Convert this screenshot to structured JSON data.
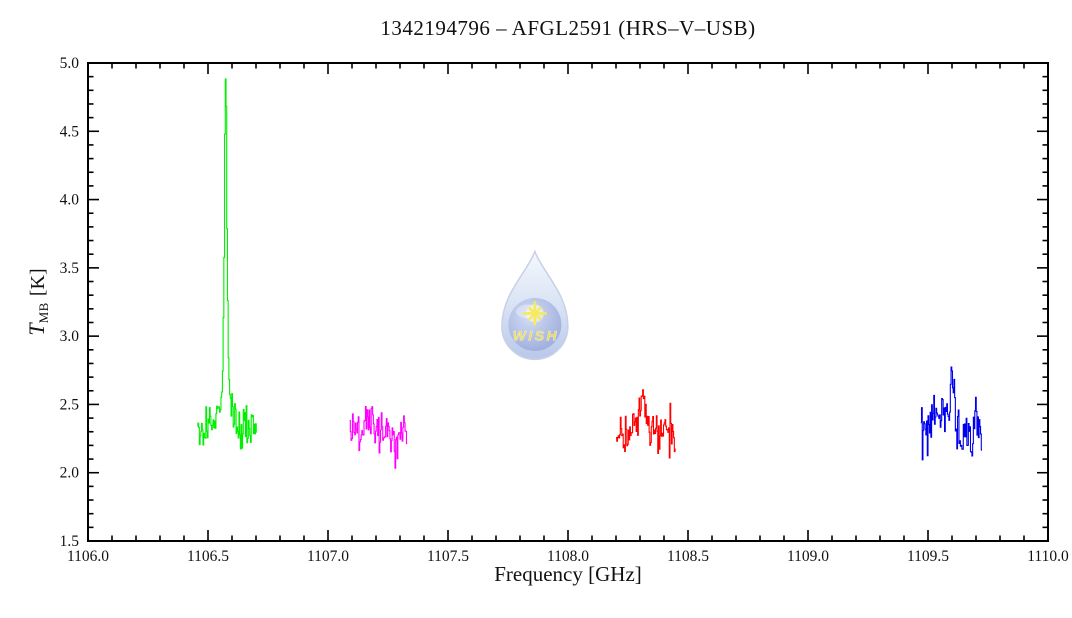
{
  "chart_data": {
    "type": "line",
    "title": "1342194796 – AFGL2591 (HRS–V–USB)",
    "xlabel": "Frequency [GHz]",
    "ylabel": "T_MB [K]",
    "ylabel_parts": {
      "symbol": "T",
      "subscript": "MB",
      "unit": "[K]"
    },
    "xlim": [
      1106.0,
      1110.0
    ],
    "ylim": [
      1.5,
      5.0
    ],
    "x_minor_step": 0.1,
    "y_minor_step": 0.1,
    "grid": false,
    "legend": "none",
    "axis_color": "#000000",
    "x_major_ticks": [
      {
        "value": 1106.0,
        "label": "1106.0"
      },
      {
        "value": 1106.5,
        "label": "1106.5"
      },
      {
        "value": 1107.0,
        "label": "1107.0"
      },
      {
        "value": 1107.5,
        "label": "1107.5"
      },
      {
        "value": 1108.0,
        "label": "1108.0"
      },
      {
        "value": 1108.5,
        "label": "1108.5"
      },
      {
        "value": 1109.0,
        "label": "1109.0"
      },
      {
        "value": 1109.5,
        "label": "1109.5"
      },
      {
        "value": 1110.0,
        "label": "1110.0"
      }
    ],
    "y_major_ticks": [
      {
        "value": 1.5,
        "label": "1.5"
      },
      {
        "value": 2.0,
        "label": "2.0"
      },
      {
        "value": 2.5,
        "label": "2.5"
      },
      {
        "value": 3.0,
        "label": "3.0"
      },
      {
        "value": 3.5,
        "label": "3.5"
      },
      {
        "value": 4.0,
        "label": "4.0"
      },
      {
        "value": 4.5,
        "label": "4.5"
      },
      {
        "value": 5.0,
        "label": "5.0"
      }
    ],
    "series": [
      {
        "name": "green-subband",
        "color": "#00ee00",
        "x_start": 1106.455,
        "x_end": 1106.705,
        "channel_width": 0.003,
        "baseline": 2.32,
        "noise_sigma": 0.075,
        "seed": 17,
        "peaks": [
          {
            "center": 1106.574,
            "height": 2.17,
            "fwhm": 0.012
          },
          {
            "center": 1106.574,
            "height": 0.38,
            "fwhm": 0.05
          }
        ],
        "peak_max_T": 4.87
      },
      {
        "name": "magenta-subband",
        "color": "#ff00ff",
        "x_start": 1107.09,
        "x_end": 1107.33,
        "channel_width": 0.003,
        "baseline": 2.3,
        "noise_sigma": 0.08,
        "seed": 29,
        "peaks": [
          {
            "center": 1107.17,
            "height": 0.1,
            "fwhm": 0.03
          }
        ],
        "peak_max_T": 2.55
      },
      {
        "name": "red-subband",
        "color": "#ff0000",
        "x_start": 1108.2,
        "x_end": 1108.45,
        "channel_width": 0.003,
        "baseline": 2.3,
        "noise_sigma": 0.075,
        "seed": 41,
        "peaks": [
          {
            "center": 1108.31,
            "height": 0.28,
            "fwhm": 0.03
          }
        ],
        "peak_max_T": 2.62
      },
      {
        "name": "blue-subband",
        "color": "#0000ee",
        "x_start": 1109.47,
        "x_end": 1109.725,
        "channel_width": 0.003,
        "baseline": 2.28,
        "noise_sigma": 0.085,
        "seed": 53,
        "peaks": [
          {
            "center": 1109.6,
            "height": 0.45,
            "fwhm": 0.018
          },
          {
            "center": 1109.565,
            "height": 0.18,
            "fwhm": 0.035
          },
          {
            "center": 1109.52,
            "height": 0.12,
            "fwhm": 0.03
          },
          {
            "center": 1109.7,
            "height": 0.28,
            "fwhm": 0.005
          }
        ],
        "peak_max_T": 2.89
      }
    ]
  },
  "watermark": {
    "text": "WISH",
    "x_center_freq": 1107.862,
    "y_center_temp": 3.21,
    "opacity": 0.78,
    "drop_color_top": "#f2f7fd",
    "drop_color_mid": "#ccd9f1",
    "drop_color_bottom": "#a6b8e4",
    "drop_outline": "#b9c4e4",
    "sphere_color_light": "#c8d4f0",
    "sphere_color_dark": "#7388cd",
    "star_color": "#f2e435",
    "text_color": "#e6d22e"
  }
}
